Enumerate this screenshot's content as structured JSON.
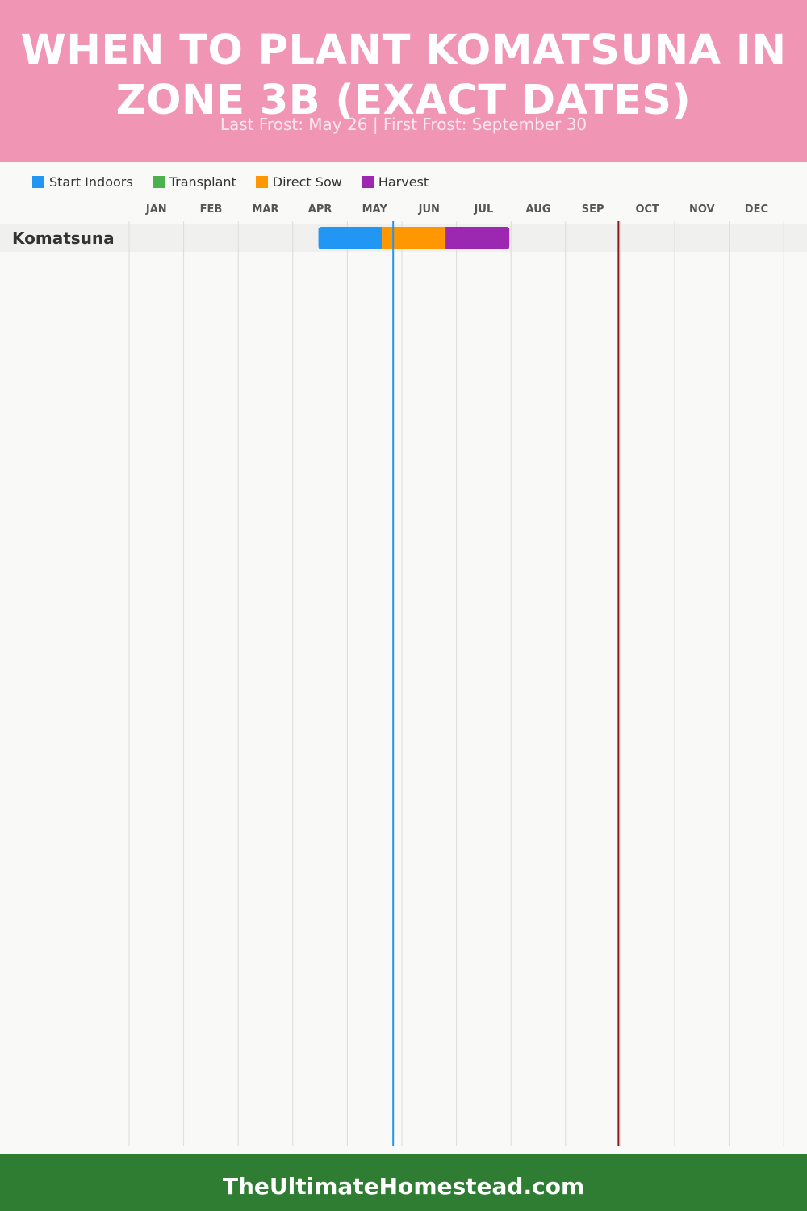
{
  "header": {
    "title": "When to Plant Komatsuna in Zone 3B (Exact Dates)",
    "subtitle": "Last Frost: May 26 | First Frost: September 30"
  },
  "legend": [
    {
      "label": "Start Indoors",
      "color": "#2196f3"
    },
    {
      "label": "Transplant",
      "color": "#4caf50"
    },
    {
      "label": "Direct Sow",
      "color": "#ff9800"
    },
    {
      "label": "Harvest",
      "color": "#9c27b0"
    }
  ],
  "chart_data": {
    "type": "gantt",
    "months": [
      "JAN",
      "FEB",
      "MAR",
      "APR",
      "MAY",
      "JUN",
      "JUL",
      "AUG",
      "SEP",
      "OCT",
      "NOV",
      "DEC"
    ],
    "rows": [
      {
        "name": "Komatsuna",
        "segments": [
          {
            "phase": "Start Indoors",
            "start_month": 3.47,
            "end_month": 4.63
          },
          {
            "phase": "Direct Sow",
            "start_month": 4.63,
            "end_month": 5.8
          },
          {
            "phase": "Harvest",
            "start_month": 5.8,
            "end_month": 6.97
          }
        ]
      }
    ],
    "markers": [
      {
        "label": "Last Frost",
        "month": 4.84,
        "color": "#2196f3"
      },
      {
        "label": "First Frost",
        "month": 8.97,
        "color": "#8b1a1a"
      }
    ]
  },
  "footer": {
    "site": "TheUltimateHomestead.com"
  }
}
